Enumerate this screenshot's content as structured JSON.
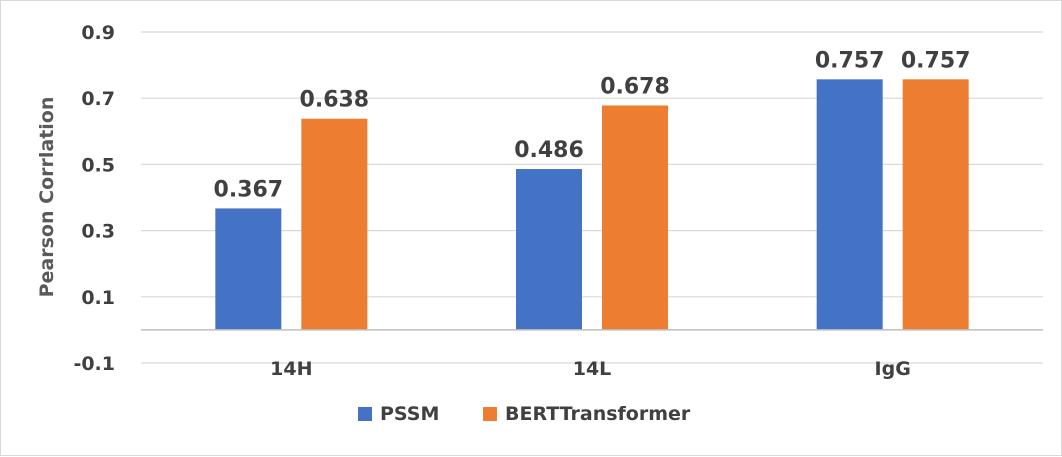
{
  "chart_data": {
    "type": "bar",
    "title": "",
    "xlabel": "",
    "ylabel": "Pearson Corrlation",
    "categories": [
      "14H",
      "14L",
      "IgG"
    ],
    "series": [
      {
        "name": "PSSM",
        "color": "#4472c4",
        "values": [
          0.367,
          0.486,
          0.757
        ],
        "labels": [
          "0.367",
          "0.486",
          "0.757"
        ]
      },
      {
        "name": "BERTTransformer",
        "color": "#ed7d31",
        "values": [
          0.638,
          0.678,
          0.757
        ],
        "labels": [
          "0.638",
          "0.678",
          "0.757"
        ]
      }
    ],
    "ylim": [
      -0.1,
      0.9
    ],
    "yticks": [
      "-0.1",
      "0.1",
      "0.3",
      "0.5",
      "0.7",
      "0.9"
    ],
    "grid": true,
    "legend": "bottom"
  }
}
